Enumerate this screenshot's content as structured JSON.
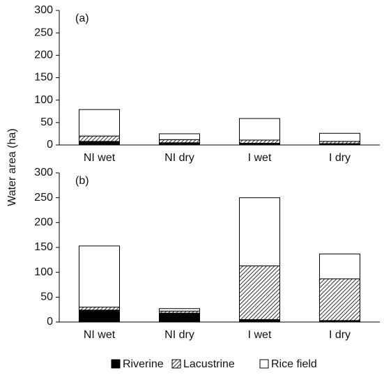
{
  "chart_data": [
    {
      "type": "stacked-bar",
      "title": "(a)",
      "ylabel": "Water area (ha)",
      "categories": [
        "NI wet",
        "NI dry",
        "I wet",
        "I dry"
      ],
      "series": [
        {
          "name": "Riverine",
          "color": "#000000",
          "values": [
            8,
            5,
            4,
            3
          ]
        },
        {
          "name": "Lacustrine",
          "color": "#000000",
          "pattern": "hatch",
          "values": [
            12,
            7,
            7,
            5
          ]
        },
        {
          "name": "Rice field",
          "color": "#ffffff",
          "values": [
            59,
            13,
            48,
            18
          ]
        }
      ],
      "ylim": [
        0,
        300
      ],
      "yticks": [
        0,
        50,
        100,
        150,
        200,
        250,
        300
      ]
    },
    {
      "type": "stacked-bar",
      "title": "(b)",
      "categories": [
        "NI wet",
        "NI dry",
        "I wet",
        "I dry"
      ],
      "series": [
        {
          "name": "Riverine",
          "color": "#000000",
          "values": [
            24,
            18,
            5,
            3
          ]
        },
        {
          "name": "Lacustrine",
          "color": "#000000",
          "pattern": "hatch",
          "values": [
            6,
            4,
            108,
            84
          ]
        },
        {
          "name": "Rice field",
          "color": "#ffffff",
          "values": [
            123,
            5,
            137,
            50
          ]
        }
      ],
      "ylim": [
        0,
        300
      ],
      "yticks": [
        0,
        50,
        100,
        150,
        200,
        250,
        300
      ]
    }
  ]
}
